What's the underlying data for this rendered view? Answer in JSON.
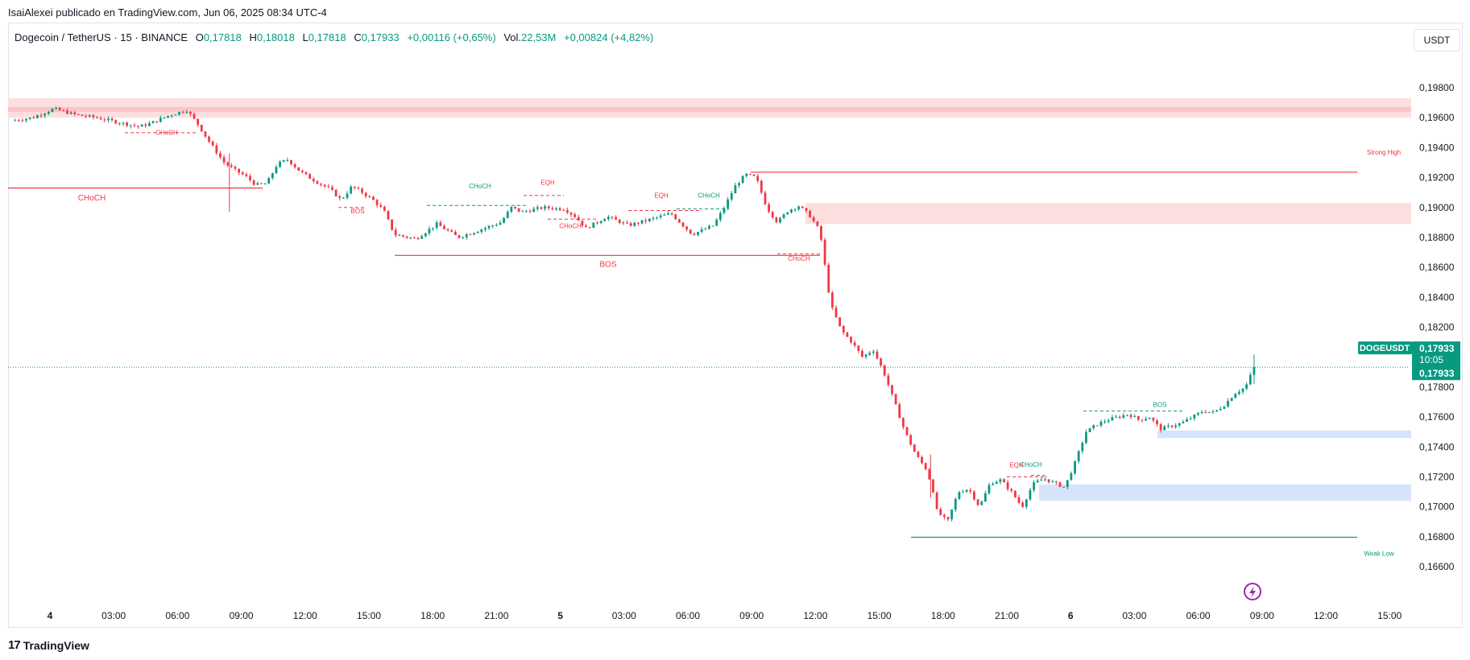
{
  "caption": "IsaiAlexei publicado en TradingView.com, Jun 06, 2025 08:34 UTC-4",
  "legend": {
    "symbol": "Dogecoin / TetherUS · 15 · BINANCE",
    "o_label": "O",
    "o_value": "0,17818",
    "h_label": "H",
    "h_value": "0,18018",
    "l_label": "L",
    "l_value": "0,17818",
    "c_label": "C",
    "c_value": "0,17933",
    "change": "+0,00116 (+0,65%)",
    "vol_label": "Vol.",
    "vol_value": "22,53M",
    "vol_change": "+0,00824 (+4,82%)"
  },
  "currency_button": "USDT",
  "footer_brand": "TradingView",
  "footer_mark": "17",
  "colors": {
    "up": "#089981",
    "down": "#f23645",
    "supply_zone": "#fddede",
    "demand_zone": "#d6e4fb",
    "price_line": "#089981"
  },
  "price_label": {
    "symbol": "DOGEUSDT",
    "price": "0,17933",
    "countdown": "10:05"
  },
  "chart_data": {
    "type": "candlestick",
    "title": "Dogecoin / TetherUS · 15 · BINANCE",
    "xlabel": "",
    "ylabel": "",
    "x_ticks": [
      "4",
      "03:00",
      "06:00",
      "09:00",
      "12:00",
      "15:00",
      "18:00",
      "21:00",
      "5",
      "03:00",
      "06:00",
      "09:00",
      "12:00",
      "15:00",
      "18:00",
      "21:00",
      "6",
      "03:00",
      "06:00",
      "09:00",
      "12:00",
      "15:00"
    ],
    "y_ticks": [
      "0,19800",
      "0,19600",
      "0,19400",
      "0,19200",
      "0,19000",
      "0,18800",
      "0,18600",
      "0,18400",
      "0,18200",
      "0,17800",
      "0,17600",
      "0,17400",
      "0,17200",
      "0,17000",
      "0,16800",
      "0,16600"
    ],
    "ylim": [
      0.1652,
      0.1994
    ],
    "grid": false,
    "last_price": 0.17933,
    "price_path": [
      [
        0,
        0.1958
      ],
      [
        2,
        0.196
      ],
      [
        4,
        0.1966
      ],
      [
        6,
        0.1962
      ],
      [
        8,
        0.196
      ],
      [
        10,
        0.1957
      ],
      [
        12,
        0.1954
      ],
      [
        13,
        0.1956
      ],
      [
        15,
        0.1962
      ],
      [
        16.5,
        0.1965
      ],
      [
        17.5,
        0.1956
      ],
      [
        18.5,
        0.1945
      ],
      [
        20,
        0.193
      ],
      [
        21,
        0.1925
      ],
      [
        22,
        0.1921
      ],
      [
        23,
        0.1915
      ],
      [
        24,
        0.1916
      ],
      [
        25,
        0.1929
      ],
      [
        26,
        0.1932
      ],
      [
        27,
        0.1925
      ],
      [
        28,
        0.192
      ],
      [
        30,
        0.1912
      ],
      [
        31,
        0.1905
      ],
      [
        32,
        0.1914
      ],
      [
        33,
        0.191
      ],
      [
        34,
        0.1905
      ],
      [
        35,
        0.1898
      ],
      [
        36,
        0.1882
      ],
      [
        38,
        0.1879
      ],
      [
        40,
        0.1889
      ],
      [
        42,
        0.188
      ],
      [
        44,
        0.1885
      ],
      [
        46,
        0.189
      ],
      [
        47,
        0.19
      ],
      [
        48,
        0.1897
      ],
      [
        50,
        0.19
      ],
      [
        52,
        0.1899
      ],
      [
        53,
        0.1894
      ],
      [
        54,
        0.1886
      ],
      [
        56,
        0.1894
      ],
      [
        58,
        0.1888
      ],
      [
        60,
        0.1892
      ],
      [
        62,
        0.1896
      ],
      [
        64,
        0.1882
      ],
      [
        66,
        0.1888
      ],
      [
        67,
        0.19
      ],
      [
        68,
        0.1914
      ],
      [
        69,
        0.1922
      ],
      [
        70,
        0.192
      ],
      [
        71,
        0.19
      ],
      [
        72,
        0.189
      ],
      [
        73,
        0.1898
      ],
      [
        74,
        0.1901
      ],
      [
        75,
        0.1895
      ],
      [
        76,
        0.1884
      ],
      [
        77,
        0.1835
      ],
      [
        78,
        0.1818
      ],
      [
        79,
        0.181
      ],
      [
        80,
        0.18
      ],
      [
        81,
        0.1805
      ],
      [
        82,
        0.179
      ],
      [
        83,
        0.177
      ],
      [
        84,
        0.175
      ],
      [
        85,
        0.1735
      ],
      [
        86,
        0.1725
      ],
      [
        86.6,
        0.1712
      ],
      [
        87,
        0.1697
      ],
      [
        88,
        0.169
      ],
      [
        89,
        0.171
      ],
      [
        90,
        0.1712
      ],
      [
        91,
        0.17
      ],
      [
        92,
        0.1716
      ],
      [
        93,
        0.1718
      ],
      [
        94,
        0.171
      ],
      [
        95,
        0.17
      ],
      [
        96,
        0.1715
      ],
      [
        97,
        0.1719
      ],
      [
        98,
        0.1716
      ],
      [
        99,
        0.1713
      ],
      [
        100,
        0.173
      ],
      [
        101,
        0.175
      ],
      [
        102,
        0.1755
      ],
      [
        103,
        0.1758
      ],
      [
        104,
        0.176
      ],
      [
        105,
        0.1762
      ],
      [
        106,
        0.1758
      ],
      [
        107,
        0.176
      ],
      [
        108,
        0.1752
      ],
      [
        109,
        0.1754
      ],
      [
        110,
        0.1756
      ],
      [
        111,
        0.176
      ],
      [
        112,
        0.1764
      ],
      [
        113,
        0.1763
      ],
      [
        114,
        0.1768
      ],
      [
        115,
        0.1776
      ],
      [
        116,
        0.178
      ],
      [
        116.8,
        0.17933
      ]
    ],
    "annotations": [
      {
        "text": "CHoCH",
        "kind": "choch_down"
      },
      {
        "text": "CHoCH",
        "kind": "choch_down"
      },
      {
        "text": "BOS",
        "kind": "bos_down"
      },
      {
        "text": "CHoCH",
        "kind": "choch_up"
      },
      {
        "text": "EQH",
        "kind": "eqh"
      },
      {
        "text": "CHoCH",
        "kind": "choch_down"
      },
      {
        "text": "EQH",
        "kind": "eqh"
      },
      {
        "text": "CHoCH",
        "kind": "choch_up"
      },
      {
        "text": "BOS",
        "kind": "bos_down"
      },
      {
        "text": "CHoCH",
        "kind": "choch_down"
      },
      {
        "text": "Strong High",
        "kind": "strong_high"
      },
      {
        "text": "BOS",
        "kind": "bos_up"
      },
      {
        "text": "EQH",
        "kind": "eqh"
      },
      {
        "text": "CHoCH",
        "kind": "choch_up"
      },
      {
        "text": "Weak Low",
        "kind": "weak_low"
      }
    ],
    "levels": [
      {
        "price": 0.1913,
        "kind": "choch_down"
      },
      {
        "price": 0.1868,
        "kind": "bos_down"
      },
      {
        "price": 0.19236,
        "kind": "strong_high"
      },
      {
        "price": 0.16797,
        "kind": "weak_low"
      }
    ],
    "zones": [
      {
        "low": 0.196,
        "high": 0.1973,
        "kind": "supply"
      },
      {
        "low": 0.1889,
        "high": 0.1903,
        "kind": "supply"
      },
      {
        "low": 0.1746,
        "high": 0.1751,
        "kind": "demand"
      },
      {
        "low": 0.1704,
        "high": 0.1715,
        "kind": "demand"
      }
    ]
  }
}
